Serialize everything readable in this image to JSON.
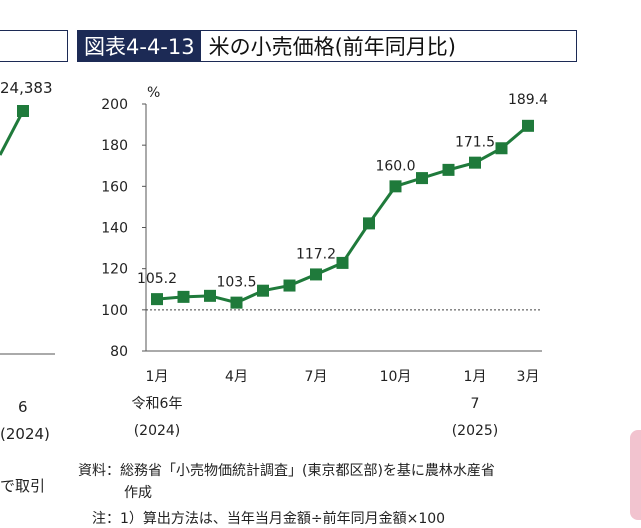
{
  "title": {
    "figure_number": "図表4-4-13",
    "text": "米の小売価格(前年同月比)"
  },
  "left_fragment": {
    "value_label": "24,383",
    "x_label_top": "6",
    "x_label_year": "(2024)",
    "note_fragment": "で取引"
  },
  "chart_data": {
    "type": "line",
    "title": "米の小売価格(前年同月比)",
    "unit_label": "%",
    "ylim": [
      80,
      200
    ],
    "y_ticks": [
      "200",
      "180",
      "160",
      "140",
      "120",
      "100",
      "80"
    ],
    "x_tick_labels": [
      {
        "index": 0,
        "text": "1月"
      },
      {
        "index": 3,
        "text": "4月"
      },
      {
        "index": 6,
        "text": "7月"
      },
      {
        "index": 9,
        "text": "10月"
      },
      {
        "index": 12,
        "text": "1月"
      },
      {
        "index": 14,
        "text": "3月"
      }
    ],
    "x_year_labels": [
      {
        "index": 0,
        "line1": "令和6年",
        "line2": "(2024)"
      },
      {
        "index": 12,
        "line1": "7",
        "line2": "(2025)"
      }
    ],
    "x": [
      "2024-01",
      "2024-02",
      "2024-03",
      "2024-04",
      "2024-05",
      "2024-06",
      "2024-07",
      "2024-08",
      "2024-09",
      "2024-10",
      "2024-11",
      "2024-12",
      "2025-01",
      "2025-02",
      "2025-03"
    ],
    "values": [
      105.2,
      106.3,
      106.8,
      103.5,
      109.3,
      111.8,
      117.2,
      122.8,
      142.0,
      160.0,
      164.0,
      168.0,
      171.5,
      178.5,
      189.4
    ],
    "data_labels": [
      {
        "index": 0,
        "text": "105.2"
      },
      {
        "index": 3,
        "text": "103.5"
      },
      {
        "index": 6,
        "text": "117.2"
      },
      {
        "index": 9,
        "text": "160.0"
      },
      {
        "index": 12,
        "text": "171.5"
      },
      {
        "index": 14,
        "text": "189.4"
      }
    ],
    "reference_line": 100,
    "line_color": "#1f7a3b"
  },
  "source": {
    "line1": "資料：総務省「小売物価統計調査」(東京都区部)を基に農林水産省",
    "line2": "作成"
  },
  "note": "注：1）算出方法は、当年当月金額÷前年同月金額×100"
}
